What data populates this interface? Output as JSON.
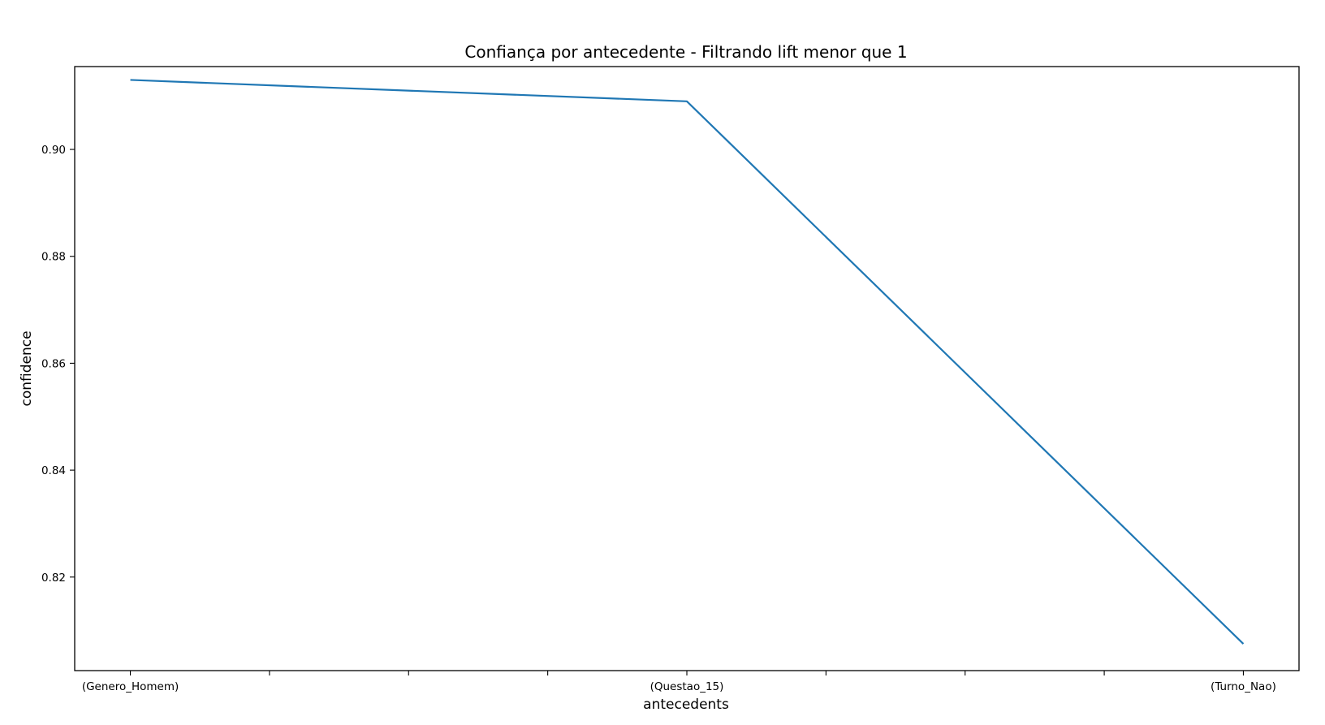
{
  "chart_data": {
    "type": "line",
    "title": "Confiança por antecedente - Filtrando lift menor que 1",
    "xlabel": "antecedents",
    "ylabel": "confidence",
    "categories": [
      "(Genero_Homem)",
      "(Questao_15)",
      "(Turno_Nao)"
    ],
    "series": [
      {
        "values": [
          0.913,
          0.909,
          0.8075
        ],
        "color": "#1f77b4"
      }
    ],
    "ylim": [
      0.8025,
      0.9155
    ],
    "yticks": [
      0.82,
      0.84,
      0.86,
      0.88,
      0.9
    ],
    "ytick_labels": [
      "0.82",
      "0.84",
      "0.86",
      "0.88",
      "0.90"
    ],
    "x_minor_ticks": [
      0.25,
      0.5,
      0.75,
      1.25,
      1.5,
      1.75
    ],
    "grid": false,
    "legend": "none"
  }
}
